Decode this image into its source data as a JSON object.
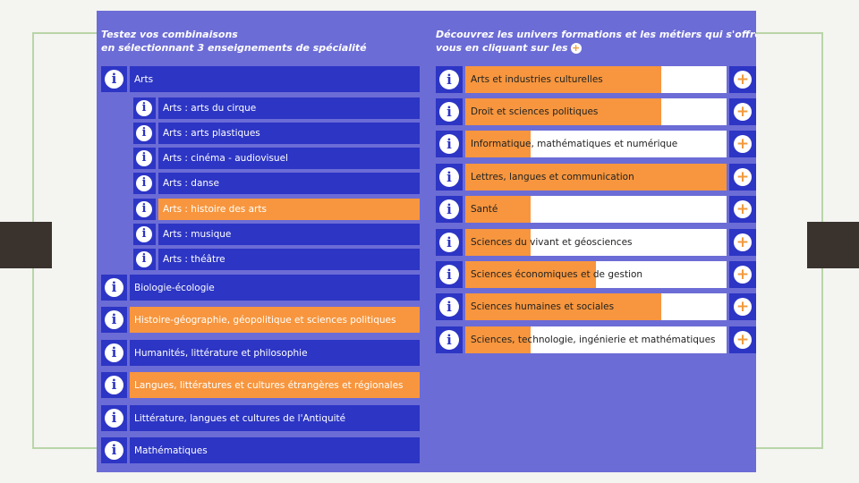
{
  "left_header": [
    "Testez vos combinaisons",
    "en sélectionnant 3 enseignements de spécialité"
  ],
  "right_header": [
    "Découvrez les univers formations et les métiers qui s'offrent à",
    "vous en cliquant sur les"
  ],
  "info_glyph": "i",
  "plus_glyph": "+",
  "specialties": [
    {
      "label": "Arts",
      "selected": false,
      "sub": false
    },
    {
      "label": "Arts : arts du cirque",
      "selected": false,
      "sub": true
    },
    {
      "label": "Arts : arts plastiques",
      "selected": false,
      "sub": true
    },
    {
      "label": "Arts : cinéma - audiovisuel",
      "selected": false,
      "sub": true
    },
    {
      "label": "Arts : danse",
      "selected": false,
      "sub": true
    },
    {
      "label": "Arts : histoire des arts",
      "selected": true,
      "sub": true
    },
    {
      "label": "Arts : musique",
      "selected": false,
      "sub": true
    },
    {
      "label": "Arts : théâtre",
      "selected": false,
      "sub": true
    },
    {
      "label": "Biologie-écologie",
      "selected": false,
      "sub": false
    },
    {
      "label": "Histoire-géographie, géopolitique et sciences politiques",
      "selected": true,
      "sub": false
    },
    {
      "label": "Humanités, littérature et philosophie",
      "selected": false,
      "sub": false
    },
    {
      "label": "Langues, littératures et cultures étrangères et régionales",
      "selected": true,
      "sub": false
    },
    {
      "label": "Littérature, langues et cultures de l'Antiquité",
      "selected": false,
      "sub": false
    },
    {
      "label": "Mathématiques",
      "selected": false,
      "sub": false
    }
  ],
  "universes": [
    {
      "label": "Arts et industries culturelles",
      "level": 0.75
    },
    {
      "label": "Droit et sciences politiques",
      "level": 0.75
    },
    {
      "label": "Informatique, mathématiques et numérique",
      "level": 0.25
    },
    {
      "label": "Lettres, langues et communication",
      "level": 1.0
    },
    {
      "label": "Santé",
      "level": 0.25
    },
    {
      "label": "Sciences du vivant et géosciences",
      "level": 0.25
    },
    {
      "label": "Sciences économiques et de gestion",
      "level": 0.5
    },
    {
      "label": "Sciences humaines et sociales",
      "level": 0.75
    },
    {
      "label": "Sciences, technologie, ingénierie et mathématiques",
      "level": 0.25
    }
  ]
}
